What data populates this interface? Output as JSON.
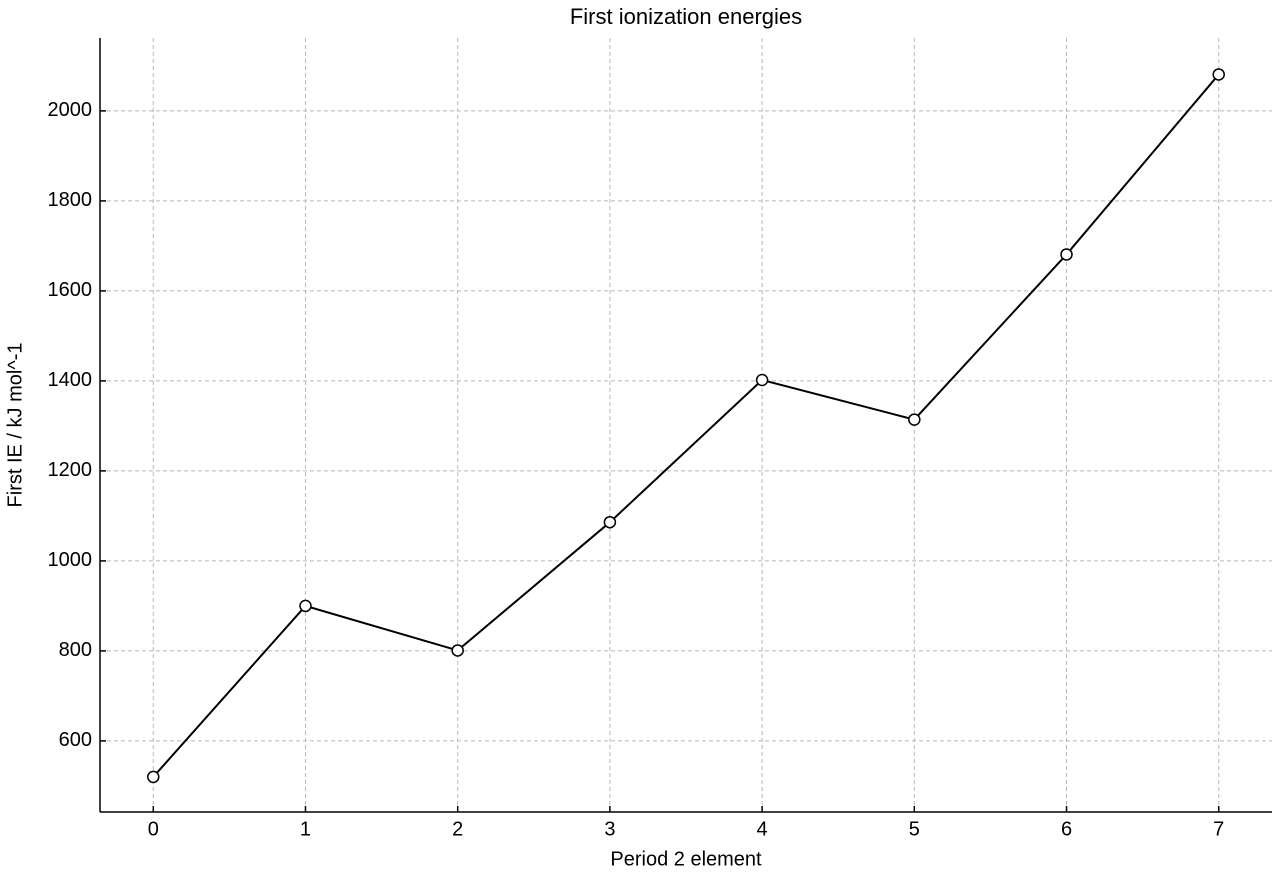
{
  "chart_data": {
    "type": "line",
    "title": "First ionization energies",
    "x_label": "Period 2 element",
    "y_label": "First IE / kJ mol^-1",
    "x": [
      0,
      1,
      2,
      3,
      4,
      5,
      6,
      7
    ],
    "values": [
      520,
      900,
      801,
      1086,
      1402,
      1314,
      1681,
      2081
    ],
    "color": "#000000",
    "marker_fill": "#ffffff",
    "xlim": [
      -0.35,
      7.35
    ],
    "ylim": [
      442,
      2162
    ],
    "xticks": [
      0,
      1,
      2,
      3,
      4,
      5,
      6,
      7
    ],
    "yticks": [
      600,
      800,
      1000,
      1200,
      1400,
      1600,
      1800,
      2000
    ],
    "grid": true
  }
}
